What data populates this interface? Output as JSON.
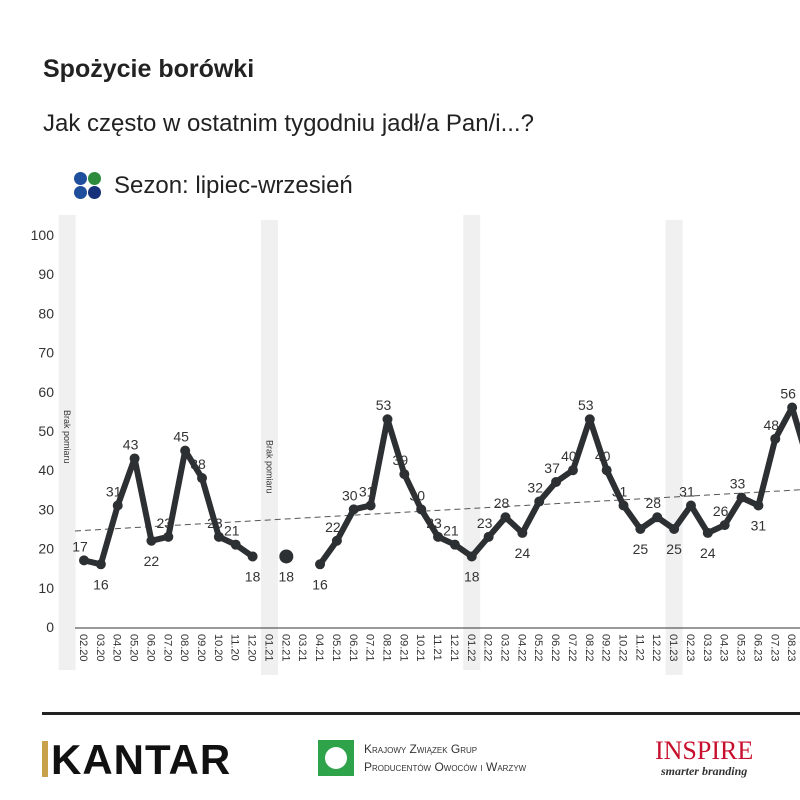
{
  "header": {
    "title": "Spożycie borówki",
    "subtitle": "Jak często w ostatnim tygodniu jadł/a Pan/i...?",
    "legend_label": "Sezon: lipiec-wrzesień",
    "legend_colors": [
      "#1f4e9c",
      "#2e8b3e",
      "#1f4e9c",
      "#16307a"
    ]
  },
  "chart_data": {
    "type": "line",
    "ylim": [
      0,
      100
    ],
    "yticks": [
      0,
      10,
      20,
      30,
      40,
      50,
      60,
      70,
      80,
      90,
      100
    ],
    "categories": [
      "02.20",
      "03.20",
      "04.20",
      "05.20",
      "06.20",
      "07.20",
      "08.20",
      "09.20",
      "10.20",
      "11.20",
      "12.20",
      "01.21",
      "02.21",
      "03.21",
      "04.21",
      "05.21",
      "06.21",
      "07.21",
      "08.21",
      "09.21",
      "10.21",
      "11.21",
      "12.21",
      "01.22",
      "02.22",
      "03.22",
      "04.22",
      "05.22",
      "06.22",
      "07.22",
      "08.22",
      "09.22",
      "10.22",
      "11.22",
      "12.22",
      "01.23",
      "02.23",
      "03.23",
      "04.23",
      "05.23",
      "06.23",
      "07.23",
      "08.23"
    ],
    "values": [
      17,
      16,
      31,
      43,
      22,
      23,
      45,
      38,
      23,
      21,
      18,
      null,
      18,
      null,
      16,
      22,
      30,
      31,
      53,
      39,
      30,
      23,
      21,
      18,
      23,
      28,
      24,
      32,
      37,
      40,
      53,
      40,
      31,
      25,
      28,
      25,
      31,
      24,
      26,
      33,
      31,
      48,
      56
    ],
    "line_color": "#2d3033",
    "trendline": {
      "style": "dashed",
      "start": 24.5,
      "end": 35
    },
    "shaded_periods": [
      {
        "at": "01.20",
        "label": "Brak pomiaru"
      },
      {
        "at": "01.21",
        "label": "Brak pomiaru"
      },
      {
        "at": "01.22",
        "label": ""
      },
      {
        "at": "01.23",
        "label": ""
      }
    ]
  },
  "footer": {
    "logo1": "KANTAR",
    "logo2_line1": "Krajowy Związek Grup",
    "logo2_line2": "Producentów Owoców i Warzyw",
    "logo3_name": "INSPIRE",
    "logo3_tagline": "smarter branding"
  }
}
